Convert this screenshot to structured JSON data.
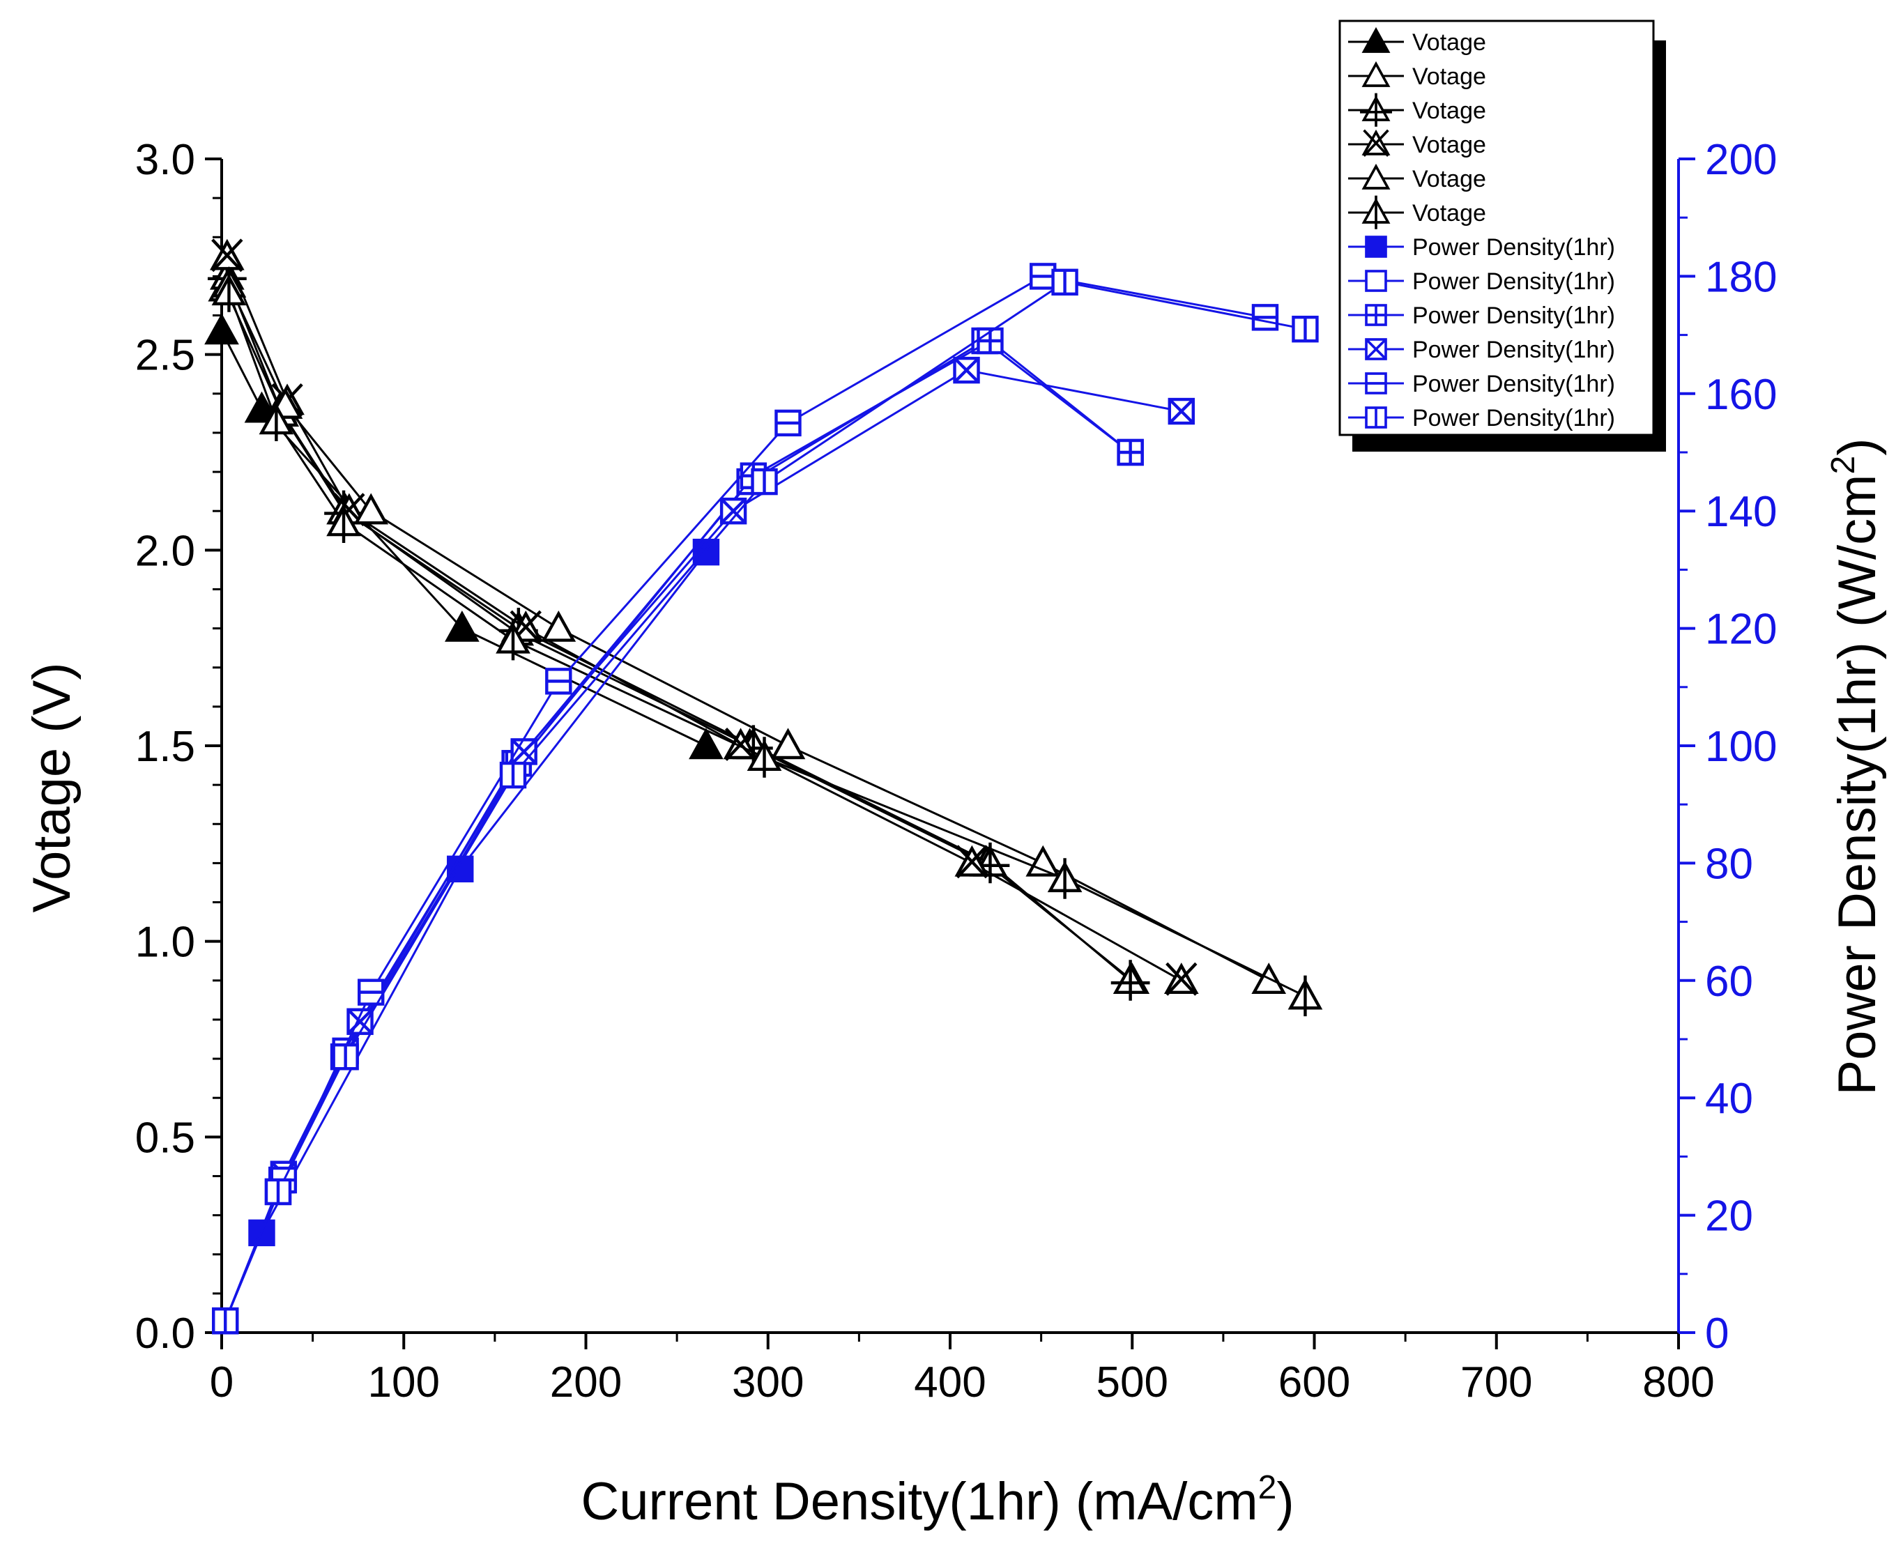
{
  "chart_data": {
    "type": "line",
    "x": {
      "label": "Current Density(1hr) (mA/cm",
      "label_sup": "2",
      "label_end": ")",
      "lim": [
        0,
        800
      ],
      "ticks": [
        "0",
        "100",
        "200",
        "300",
        "400",
        "500",
        "600",
        "700",
        "800"
      ]
    },
    "y_left": {
      "label": "Votage (V)",
      "lim": [
        0,
        3.0
      ],
      "ticks": [
        "0.0",
        "0.5",
        "1.0",
        "1.5",
        "2.0",
        "2.5",
        "3.0"
      ]
    },
    "y_right": {
      "label": "Power Density(1hr) (W/cm",
      "label_sup": "2",
      "label_end": ")",
      "lim": [
        0,
        200
      ],
      "ticks": [
        "0",
        "20",
        "40",
        "60",
        "80",
        "100",
        "120",
        "140",
        "160",
        "180",
        "200"
      ]
    },
    "colors": {
      "voltage": "#000000",
      "power": "#1414e6",
      "right_axis": "#1414e6"
    },
    "legend": {
      "position": "top-right",
      "entries": [
        {
          "label": "Votage",
          "marker": "triangle-filled",
          "group": "voltage"
        },
        {
          "label": "Votage",
          "marker": "triangle-open",
          "group": "voltage"
        },
        {
          "label": "Votage",
          "marker": "triangle-plus",
          "group": "voltage"
        },
        {
          "label": "Votage",
          "marker": "triangle-x",
          "group": "voltage"
        },
        {
          "label": "Votage",
          "marker": "triangle-open",
          "group": "voltage"
        },
        {
          "label": "Votage",
          "marker": "triangle-vline",
          "group": "voltage"
        },
        {
          "label": "Power Density(1hr)",
          "marker": "square-filled",
          "group": "power"
        },
        {
          "label": "Power Density(1hr)",
          "marker": "square-open",
          "group": "power"
        },
        {
          "label": "Power Density(1hr)",
          "marker": "square-plus",
          "group": "power"
        },
        {
          "label": "Power Density(1hr)",
          "marker": "square-x",
          "group": "power"
        },
        {
          "label": "Power Density(1hr)",
          "marker": "square-hline",
          "group": "power"
        },
        {
          "label": "Power Density(1hr)",
          "marker": "square-vline",
          "group": "power"
        }
      ]
    },
    "voltage_series": [
      {
        "name": "Votage 1",
        "marker": "triangle-filled",
        "points": [
          [
            0,
            2.56
          ],
          [
            22,
            2.36
          ],
          [
            132,
            1.8
          ],
          [
            266,
            1.5
          ]
        ]
      },
      {
        "name": "Votage 2",
        "marker": "triangle-open",
        "points": [
          [
            2,
            2.67
          ],
          [
            32,
            2.36
          ],
          [
            68,
            2.1
          ],
          [
            162,
            1.79
          ],
          [
            290,
            1.5
          ],
          [
            420,
            1.2
          ],
          [
            500,
            0.9
          ]
        ]
      },
      {
        "name": "Votage 3",
        "marker": "triangle-plus",
        "points": [
          [
            3,
            2.7
          ],
          [
            33,
            2.35
          ],
          [
            67,
            2.1
          ],
          [
            163,
            1.8
          ],
          [
            292,
            1.5
          ],
          [
            422,
            1.2
          ],
          [
            499,
            0.9
          ]
        ]
      },
      {
        "name": "Votage 4",
        "marker": "triangle-x",
        "points": [
          [
            3,
            2.75
          ],
          [
            36,
            2.38
          ],
          [
            70,
            2.1
          ],
          [
            167,
            1.8
          ],
          [
            285,
            1.5
          ],
          [
            412,
            1.2
          ],
          [
            527,
            0.9
          ]
        ]
      },
      {
        "name": "Votage 5",
        "marker": "triangle-open",
        "points": [
          [
            4,
            2.68
          ],
          [
            35,
            2.37
          ],
          [
            82,
            2.1
          ],
          [
            185,
            1.8
          ],
          [
            311,
            1.5
          ],
          [
            451,
            1.2
          ],
          [
            575,
            0.9
          ]
        ]
      },
      {
        "name": "Votage 6",
        "marker": "triangle-vline",
        "points": [
          [
            4,
            2.66
          ],
          [
            30,
            2.33
          ],
          [
            67,
            2.07
          ],
          [
            160,
            1.77
          ],
          [
            298,
            1.47
          ],
          [
            463,
            1.16
          ],
          [
            595,
            0.86
          ]
        ]
      }
    ],
    "power_series": [
      {
        "name": "Power Density(1hr) 1",
        "marker": "square-filled",
        "points": [
          [
            2,
            2
          ],
          [
            22,
            17
          ],
          [
            131,
            79
          ],
          [
            266,
            133
          ]
        ]
      },
      {
        "name": "Power Density(1hr) 2",
        "marker": "square-open",
        "points": [
          [
            2,
            2
          ],
          [
            31,
            24
          ],
          [
            68,
            48
          ],
          [
            161,
            97
          ],
          [
            290,
            145
          ],
          [
            419,
            169
          ],
          [
            499,
            150
          ]
        ]
      },
      {
        "name": "Power Density(1hr) 3",
        "marker": "square-plus",
        "points": [
          [
            2,
            2
          ],
          [
            33,
            26
          ],
          [
            67,
            47
          ],
          [
            163,
            97
          ],
          [
            292,
            146
          ],
          [
            422,
            169
          ],
          [
            499,
            150
          ]
        ]
      },
      {
        "name": "Power Density(1hr) 4",
        "marker": "square-x",
        "points": [
          [
            2,
            2
          ],
          [
            34,
            27
          ],
          [
            76,
            53
          ],
          [
            166,
            99
          ],
          [
            281,
            140
          ],
          [
            409,
            164
          ],
          [
            527,
            157
          ]
        ]
      },
      {
        "name": "Power Density(1hr) 5",
        "marker": "square-hline",
        "points": [
          [
            2,
            2
          ],
          [
            34,
            26
          ],
          [
            82,
            58
          ],
          [
            185,
            111
          ],
          [
            311,
            155
          ],
          [
            451,
            180
          ],
          [
            573,
            173
          ]
        ]
      },
      {
        "name": "Power Density(1hr) 6",
        "marker": "square-vline",
        "points": [
          [
            2,
            2
          ],
          [
            31,
            24
          ],
          [
            68,
            47
          ],
          [
            160,
            95
          ],
          [
            298,
            145
          ],
          [
            463,
            179
          ],
          [
            595,
            171
          ]
        ]
      }
    ]
  }
}
